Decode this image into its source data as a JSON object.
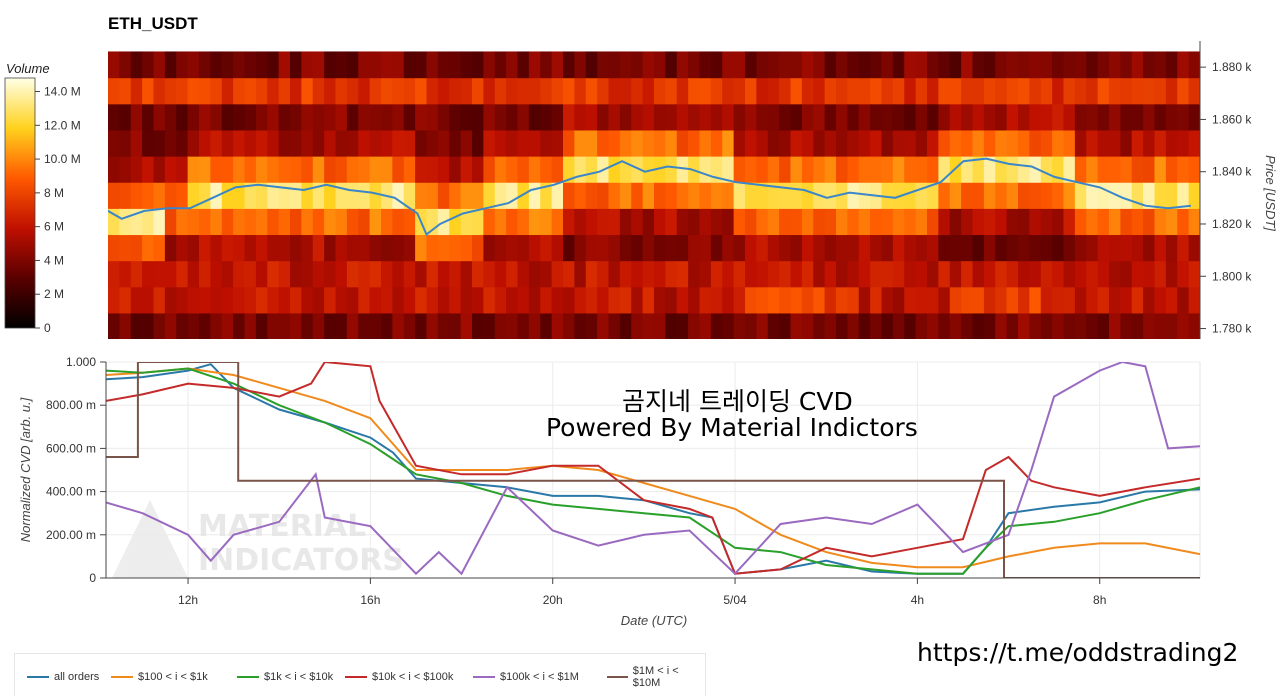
{
  "title": "ETH_USDT",
  "overlay": {
    "line1": "곰지네 트레이딩 CVD",
    "line2": "Powered By Material Indictors",
    "link": "https://t.me/oddstrading2",
    "watermark_line1": "MATERIAL",
    "watermark_line2": "INDICATORS"
  },
  "colors": {
    "all_orders": "#2a78a8",
    "usd_100_1k": "#f08a1c",
    "usd_1k_10k": "#2aa02a",
    "usd_10k_100k": "#c42a2a",
    "usd_100k_1m": "#9a6ac0",
    "usd_1m_10m": "#7a5448",
    "price_line": "#3a86c8"
  },
  "chart_data": [
    {
      "type": "heatmap",
      "title": "ETH_USDT",
      "ylabel": "Price [USDT]",
      "y_ticks": [
        "1.780 k",
        "1.800 k",
        "1.820 k",
        "1.840 k",
        "1.860 k",
        "1.880 k"
      ],
      "y_tick_values": [
        1780,
        1800,
        1820,
        1840,
        1860,
        1880
      ],
      "ylim": [
        1776,
        1890
      ],
      "colorbar": {
        "label": "Volume",
        "ticks": [
          "0",
          "2 M",
          "4 M",
          "6 M",
          "8 M",
          "10.0 M",
          "12.0 M",
          "14.0 M"
        ],
        "tick_values": [
          0,
          2,
          4,
          6,
          8,
          10,
          12,
          14
        ],
        "range": [
          0,
          14.8
        ]
      },
      "bands_price_low_to_high": [
        1776,
        1786,
        1796,
        1806,
        1816,
        1826,
        1836,
        1846,
        1856,
        1866,
        1876,
        1886
      ],
      "price_line": {
        "x_hours": [
          10,
          10.5,
          11,
          11.5,
          12,
          12.5,
          13,
          13.5,
          14,
          14.5,
          15,
          15.5,
          16,
          16.5,
          17,
          17.2,
          17.5,
          18,
          18.5,
          19,
          19.5,
          20,
          20.5,
          21,
          21.5,
          22,
          22.5,
          23,
          23.5,
          24,
          24.5,
          25,
          25.5,
          26,
          26.5,
          27,
          27.5,
          28,
          28.5,
          29,
          29.5,
          30,
          30.5,
          31,
          31.5,
          32,
          32.5,
          33,
          33.5,
          34
        ],
        "price": [
          1827,
          1822,
          1825,
          1826,
          1826,
          1830,
          1834,
          1835,
          1834,
          1833,
          1835,
          1833,
          1832,
          1830,
          1824,
          1816,
          1820,
          1824,
          1826,
          1828,
          1833,
          1835,
          1838,
          1840,
          1844,
          1840,
          1842,
          1841,
          1838,
          1836,
          1835,
          1834,
          1833,
          1830,
          1832,
          1831,
          1830,
          1833,
          1836,
          1844,
          1845,
          1843,
          1842,
          1838,
          1836,
          1834,
          1830,
          1827,
          1826,
          1827
        ]
      }
    },
    {
      "type": "line",
      "xlabel": "Date (UTC)",
      "ylabel": "Normalized CVD [arb. u.]",
      "x_ticks": [
        "12h",
        "16h",
        "20h",
        "5/04",
        "4h",
        "8h"
      ],
      "x_tick_hours": [
        12,
        16,
        20,
        24,
        28,
        32
      ],
      "xlim_hours": [
        10.2,
        34.2
      ],
      "y_ticks": [
        "0",
        "200.00 m",
        "400.00 m",
        "600.00 m",
        "800.00 m",
        "1.000"
      ],
      "y_tick_values": [
        0,
        0.2,
        0.4,
        0.6,
        0.8,
        1.0
      ],
      "ylim": [
        0,
        1.0
      ],
      "grid": true,
      "legend_position": "bottom",
      "series": [
        {
          "name": "all orders",
          "color_key": "all_orders",
          "x": [
            10.2,
            11,
            12,
            12.5,
            13,
            14,
            15,
            16,
            16.5,
            17,
            18,
            19,
            20,
            21,
            22,
            23,
            23.5,
            24,
            25,
            26,
            27,
            28,
            29,
            29.5,
            30,
            31,
            32,
            33,
            34.2
          ],
          "y": [
            0.92,
            0.93,
            0.96,
            0.99,
            0.88,
            0.78,
            0.72,
            0.65,
            0.58,
            0.46,
            0.44,
            0.42,
            0.38,
            0.38,
            0.36,
            0.3,
            0.28,
            0.02,
            0.04,
            0.08,
            0.03,
            0.02,
            0.02,
            0.14,
            0.3,
            0.33,
            0.35,
            0.4,
            0.41
          ]
        },
        {
          "name": "$100 < i < $1k",
          "color_key": "usd_100_1k",
          "x": [
            10.2,
            11,
            12,
            13,
            14,
            15,
            16,
            17,
            18,
            19,
            20,
            21,
            22,
            23,
            24,
            25,
            26,
            27,
            28,
            29,
            30,
            31,
            32,
            33,
            34.2
          ],
          "y": [
            0.94,
            0.95,
            0.97,
            0.94,
            0.88,
            0.82,
            0.74,
            0.5,
            0.5,
            0.5,
            0.52,
            0.5,
            0.44,
            0.38,
            0.32,
            0.2,
            0.12,
            0.07,
            0.05,
            0.05,
            0.1,
            0.14,
            0.16,
            0.16,
            0.11
          ]
        },
        {
          "name": "$1k < i < $10k",
          "color_key": "usd_1k_10k",
          "x": [
            10.2,
            11,
            12,
            13,
            14,
            15,
            16,
            17,
            18,
            19,
            20,
            21,
            22,
            23,
            24,
            25,
            26,
            27,
            28,
            29,
            29.5,
            30,
            31,
            32,
            33,
            34.2
          ],
          "y": [
            0.96,
            0.95,
            0.97,
            0.9,
            0.8,
            0.72,
            0.62,
            0.48,
            0.44,
            0.38,
            0.34,
            0.32,
            0.3,
            0.28,
            0.14,
            0.12,
            0.06,
            0.04,
            0.02,
            0.02,
            0.14,
            0.24,
            0.26,
            0.3,
            0.36,
            0.42
          ]
        },
        {
          "name": "$10k < i < $100k",
          "color_key": "usd_10k_100k",
          "x": [
            10.2,
            11,
            12,
            13,
            14,
            14.7,
            15,
            16,
            16.2,
            17,
            18,
            19,
            20,
            21,
            22,
            23,
            23.5,
            24,
            25,
            26,
            27,
            28,
            29,
            29.5,
            30,
            30.5,
            31,
            32,
            33,
            34.2
          ],
          "y": [
            0.82,
            0.85,
            0.9,
            0.88,
            0.84,
            0.9,
            1.0,
            0.98,
            0.82,
            0.52,
            0.48,
            0.48,
            0.52,
            0.52,
            0.36,
            0.32,
            0.28,
            0.02,
            0.04,
            0.14,
            0.1,
            0.14,
            0.18,
            0.5,
            0.56,
            0.45,
            0.42,
            0.38,
            0.42,
            0.46
          ]
        },
        {
          "name": "$100k < i < $1M",
          "color_key": "usd_100k_1m",
          "x": [
            10.2,
            11,
            12,
            12.5,
            13,
            14,
            14.8,
            15,
            16,
            17,
            17.5,
            18,
            19,
            20,
            21,
            22,
            23,
            24,
            25,
            26,
            27,
            28,
            29,
            30,
            30.5,
            31,
            32,
            32.5,
            33,
            33.5,
            34.2
          ],
          "y": [
            0.35,
            0.3,
            0.2,
            0.08,
            0.2,
            0.26,
            0.48,
            0.28,
            0.24,
            0.02,
            0.12,
            0.02,
            0.42,
            0.22,
            0.15,
            0.2,
            0.22,
            0.02,
            0.25,
            0.28,
            0.25,
            0.34,
            0.12,
            0.2,
            0.5,
            0.84,
            0.96,
            1.0,
            0.98,
            0.6,
            0.61
          ]
        },
        {
          "name": "$1M < i < $10M",
          "color_key": "usd_1m_10m",
          "x": [
            10.2,
            10.9,
            10.9,
            13.1,
            13.1,
            29.9,
            29.9,
            34.2
          ],
          "y": [
            0.56,
            0.56,
            1.0,
            1.0,
            0.45,
            0.45,
            0.0,
            0.0
          ]
        }
      ]
    }
  ]
}
